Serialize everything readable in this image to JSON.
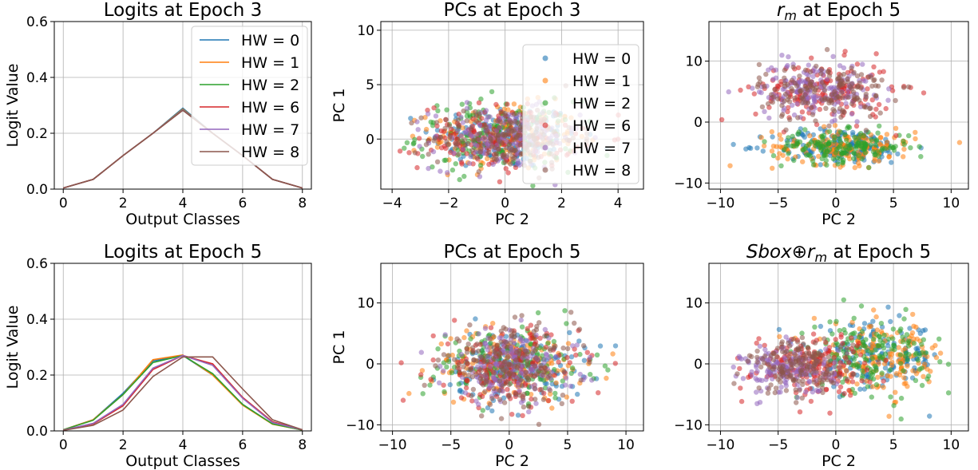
{
  "colors": {
    "HW = 0": "#1f77b4",
    "HW = 1": "#ff7f0e",
    "HW = 2": "#2ca02c",
    "HW = 6": "#d62728",
    "HW = 7": "#9467bd",
    "HW = 8": "#8c564b"
  },
  "chart_data": [
    {
      "type": "line",
      "title": "Logits at Epoch 3",
      "xlabel": "Output Classes",
      "ylabel": "Logit Value",
      "xlim": [
        -0.3,
        8.3
      ],
      "ylim": [
        0,
        0.6
      ],
      "xticks": [
        0,
        2,
        4,
        6,
        8
      ],
      "yticks": [
        0.0,
        0.2,
        0.4,
        0.6
      ],
      "grid": true,
      "legend": "top-right",
      "x": [
        0,
        1,
        2,
        3,
        4,
        5,
        6,
        7,
        8
      ],
      "series": [
        {
          "name": "HW = 0",
          "values": [
            0.004,
            0.035,
            0.12,
            0.2,
            0.29,
            0.2,
            0.12,
            0.035,
            0.004
          ]
        },
        {
          "name": "HW = 1",
          "values": [
            0.004,
            0.035,
            0.12,
            0.2,
            0.287,
            0.2,
            0.12,
            0.035,
            0.004
          ]
        },
        {
          "name": "HW = 2",
          "values": [
            0.004,
            0.035,
            0.12,
            0.2,
            0.285,
            0.2,
            0.12,
            0.035,
            0.004
          ]
        },
        {
          "name": "HW = 6",
          "values": [
            0.004,
            0.035,
            0.12,
            0.2,
            0.283,
            0.2,
            0.12,
            0.035,
            0.004
          ]
        },
        {
          "name": "HW = 7",
          "values": [
            0.004,
            0.035,
            0.12,
            0.2,
            0.284,
            0.2,
            0.12,
            0.035,
            0.004
          ]
        },
        {
          "name": "HW = 8",
          "values": [
            0.004,
            0.035,
            0.12,
            0.2,
            0.282,
            0.2,
            0.12,
            0.035,
            0.004
          ]
        }
      ]
    },
    {
      "type": "scatter",
      "title": "PCs at Epoch 3",
      "xlabel": "PC 2",
      "ylabel": "PC 1",
      "xlim": [
        -4.4,
        4.9
      ],
      "ylim": [
        -4.6,
        10.8
      ],
      "xticks": [
        -4,
        -2,
        0,
        2,
        4
      ],
      "yticks": [
        0,
        5,
        10
      ],
      "grid": true,
      "legend": "right",
      "series": [
        {
          "name": "HW = 0",
          "center": [
            0.0,
            0.2
          ],
          "spread": [
            1.3,
            1.5
          ]
        },
        {
          "name": "HW = 1",
          "center": [
            0.0,
            0.2
          ],
          "spread": [
            1.3,
            1.5
          ]
        },
        {
          "name": "HW = 2",
          "center": [
            -0.3,
            0.3
          ],
          "spread": [
            1.4,
            1.6
          ]
        },
        {
          "name": "HW = 6",
          "center": [
            -0.2,
            0.2
          ],
          "spread": [
            1.4,
            1.5
          ]
        },
        {
          "name": "HW = 7",
          "center": [
            0.0,
            0.0
          ],
          "spread": [
            1.3,
            1.4
          ]
        },
        {
          "name": "HW = 8",
          "center": [
            0.0,
            0.1
          ],
          "spread": [
            1.3,
            1.4
          ]
        }
      ]
    },
    {
      "type": "scatter",
      "title_base": "r",
      "title_sub": "m",
      "title_rest": " at Epoch 5",
      "xlabel": "PC 2",
      "ylabel": "",
      "xlim": [
        -11,
        11.5
      ],
      "ylim": [
        -11,
        16.5
      ],
      "xticks": [
        -10,
        -5,
        0,
        5,
        10
      ],
      "yticks": [
        -10,
        0,
        10
      ],
      "grid": true,
      "series": [
        {
          "name": "HW = 0",
          "center": [
            0.5,
            -4
          ],
          "spread": [
            3.0,
            1.4
          ]
        },
        {
          "name": "HW = 1",
          "center": [
            0.8,
            -4
          ],
          "spread": [
            3.1,
            1.5
          ]
        },
        {
          "name": "HW = 2",
          "center": [
            0.5,
            -4
          ],
          "spread": [
            3.0,
            1.3
          ]
        },
        {
          "name": "HW = 6",
          "center": [
            -1.0,
            5
          ],
          "spread": [
            3.0,
            2.5
          ]
        },
        {
          "name": "HW = 7",
          "center": [
            -1.8,
            5.5
          ],
          "spread": [
            2.5,
            2.2
          ]
        },
        {
          "name": "HW = 8",
          "center": [
            -1.0,
            5
          ],
          "spread": [
            2.8,
            2.4
          ]
        }
      ]
    },
    {
      "type": "line",
      "title": "Logits at Epoch 5",
      "xlabel": "Output Classes",
      "ylabel": "Logit Value",
      "xlim": [
        -0.3,
        8.3
      ],
      "ylim": [
        0,
        0.6
      ],
      "xticks": [
        0,
        2,
        4,
        6,
        8
      ],
      "yticks": [
        0.0,
        0.2,
        0.4,
        0.6
      ],
      "grid": true,
      "x": [
        0,
        1,
        2,
        3,
        4,
        5,
        6,
        7,
        8
      ],
      "series": [
        {
          "name": "HW = 0",
          "values": [
            0.004,
            0.04,
            0.135,
            0.25,
            0.27,
            0.2,
            0.095,
            0.025,
            0.003
          ]
        },
        {
          "name": "HW = 1",
          "values": [
            0.004,
            0.04,
            0.13,
            0.255,
            0.272,
            0.2,
            0.092,
            0.024,
            0.003
          ]
        },
        {
          "name": "HW = 2",
          "values": [
            0.004,
            0.038,
            0.13,
            0.245,
            0.27,
            0.205,
            0.095,
            0.025,
            0.003
          ]
        },
        {
          "name": "HW = 6",
          "values": [
            0.003,
            0.025,
            0.09,
            0.22,
            0.27,
            0.24,
            0.12,
            0.033,
            0.004
          ]
        },
        {
          "name": "HW = 7",
          "values": [
            0.003,
            0.027,
            0.095,
            0.225,
            0.27,
            0.235,
            0.117,
            0.03,
            0.004
          ]
        },
        {
          "name": "HW = 8",
          "values": [
            0.002,
            0.02,
            0.075,
            0.195,
            0.265,
            0.265,
            0.15,
            0.04,
            0.004
          ]
        }
      ]
    },
    {
      "type": "scatter",
      "title": "PCs at Epoch 5",
      "xlabel": "PC 2",
      "ylabel": "PC 1",
      "xlim": [
        -11,
        11.5
      ],
      "ylim": [
        -11,
        16.5
      ],
      "xticks": [
        -10,
        -5,
        0,
        5,
        10
      ],
      "yticks": [
        -10,
        0,
        10
      ],
      "grid": true,
      "series": [
        {
          "name": "HW = 0",
          "center": [
            0.5,
            -0.3
          ],
          "spread": [
            3.0,
            2.8
          ]
        },
        {
          "name": "HW = 1",
          "center": [
            0.0,
            0.0
          ],
          "spread": [
            3.2,
            2.8
          ]
        },
        {
          "name": "HW = 2",
          "center": [
            0.0,
            0.0
          ],
          "spread": [
            3.6,
            3.0
          ]
        },
        {
          "name": "HW = 6",
          "center": [
            0.0,
            -0.5
          ],
          "spread": [
            3.0,
            3.2
          ]
        },
        {
          "name": "HW = 7",
          "center": [
            0.2,
            -0.5
          ],
          "spread": [
            2.8,
            3.0
          ]
        },
        {
          "name": "HW = 8",
          "center": [
            0.0,
            -0.3
          ],
          "spread": [
            2.9,
            3.1
          ]
        }
      ]
    },
    {
      "type": "scatter",
      "title_base": "Sbox",
      "title_op": "⊕",
      "title_after_op": "r",
      "title_sub": "m",
      "title_rest": " at Epoch 5",
      "xlabel": "PC 2",
      "ylabel": "",
      "xlim": [
        -11,
        11.5
      ],
      "ylim": [
        -11,
        16.5
      ],
      "xticks": [
        -10,
        -5,
        0,
        5,
        10
      ],
      "yticks": [
        -10,
        0,
        10
      ],
      "grid": true,
      "series": [
        {
          "name": "HW = 0",
          "center": [
            3.5,
            1.0
          ],
          "spread": [
            2.8,
            2.8
          ]
        },
        {
          "name": "HW = 1",
          "center": [
            4.0,
            1.0
          ],
          "spread": [
            3.0,
            2.8
          ]
        },
        {
          "name": "HW = 2",
          "center": [
            3.0,
            1.5
          ],
          "spread": [
            2.6,
            3.0
          ]
        },
        {
          "name": "HW = 6",
          "center": [
            -2.2,
            0.0
          ],
          "spread": [
            2.5,
            2.5
          ]
        },
        {
          "name": "HW = 7",
          "center": [
            -4.0,
            -1.0
          ],
          "spread": [
            2.0,
            2.0
          ]
        },
        {
          "name": "HW = 8",
          "center": [
            -3.0,
            -0.5
          ],
          "spread": [
            2.2,
            2.2
          ]
        }
      ]
    }
  ]
}
